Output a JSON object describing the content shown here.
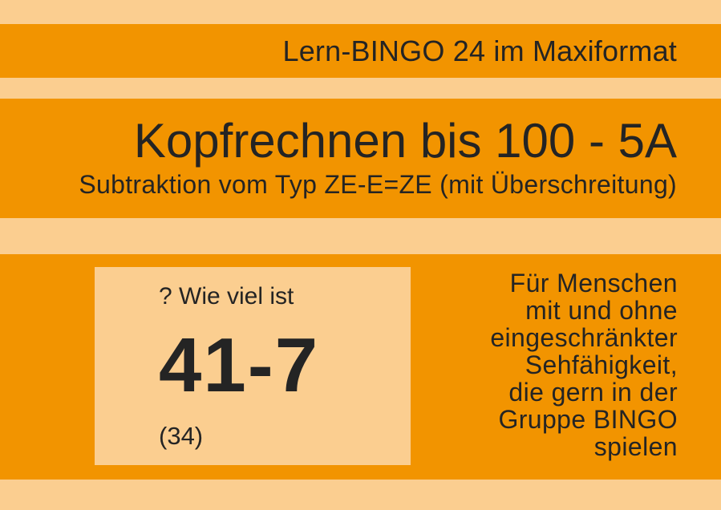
{
  "page": {
    "band_color": "#F29400",
    "stripe_color": "#FBCE90",
    "text_color": "#242424"
  },
  "header": {
    "brand": "Lern-BINGO 24 im Maxiformat"
  },
  "title_section": {
    "title": "Kopfrechnen bis 100 - 5A",
    "subtitle": "Subtraktion vom Typ ZE-E=ZE (mit Überschreitung)"
  },
  "task_card": {
    "prompt": "? Wie viel ist",
    "problem": "41-7",
    "solution": "(34)"
  },
  "audience_note": {
    "lines": [
      "Für Menschen",
      "mit und ohne",
      "eingeschränkter",
      "Sehfähigkeit,",
      "die gern in der",
      "Gruppe BINGO",
      "spielen"
    ]
  }
}
